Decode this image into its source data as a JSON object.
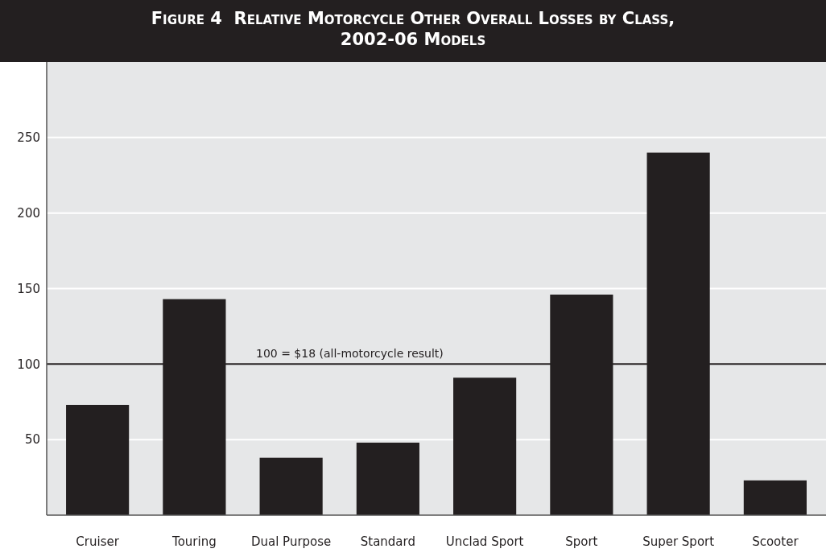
{
  "chart_data": {
    "type": "bar",
    "title": "Figure 4  Relative Motorcycle Other Overall Losses by Class, 2002-06 Models",
    "categories": [
      "Cruiser",
      "Touring",
      "Dual Purpose",
      "Standard",
      "Unclad Sport",
      "Sport",
      "Super Sport",
      "Scooter"
    ],
    "values": [
      73,
      143,
      38,
      48,
      91,
      146,
      240,
      23
    ],
    "color": "#231f20",
    "ylim": [
      0,
      300
    ],
    "yticks": [
      50,
      100,
      150,
      200,
      250
    ],
    "grid": "y",
    "ref_lines": [
      {
        "axis": "y",
        "value": 100,
        "label": "100 = $18 (all-motorcycle result)",
        "color": "#231f20"
      }
    ]
  }
}
